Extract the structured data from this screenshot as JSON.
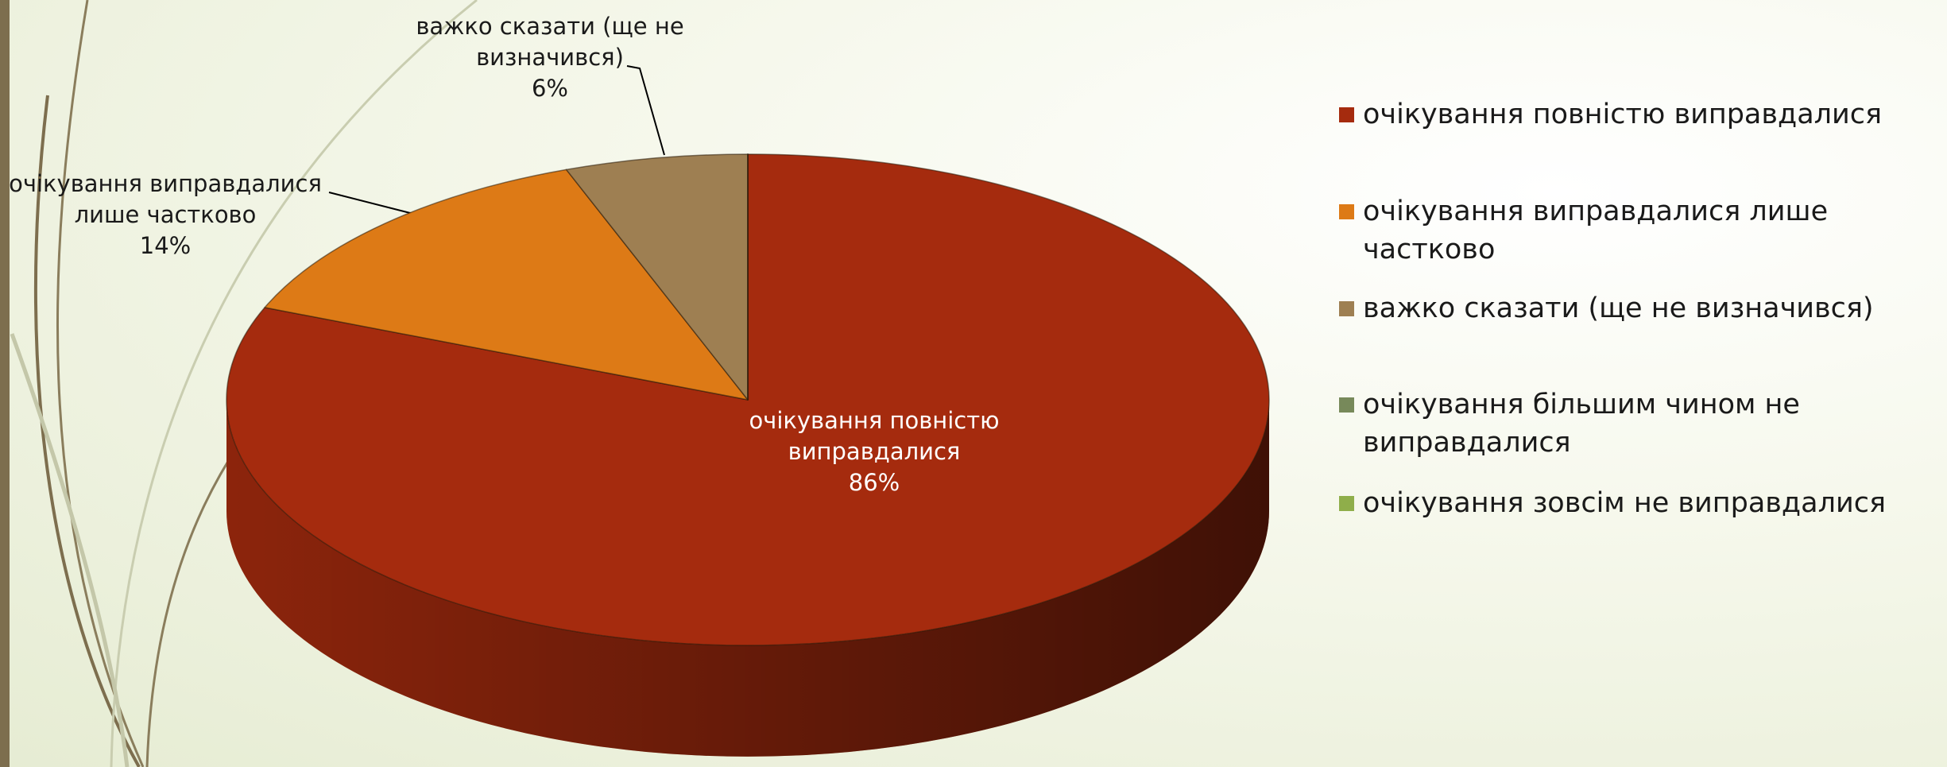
{
  "chart_data": {
    "type": "pie3d",
    "categories": [
      "очікування повністю виправдалися",
      "очікування виправдалися лише частково",
      "важко сказати (ще не визначився)",
      "очікування більшим чином не виправдалися",
      "очікування зовсім не виправдалися"
    ],
    "values": [
      86,
      14,
      6,
      0,
      0
    ],
    "value_labels": [
      "86%",
      "14%",
      "6%",
      null,
      null
    ],
    "colors": [
      "#a52b0e",
      "#dd7a16",
      "#9e7f52",
      "#77895a",
      "#8fae4a"
    ],
    "legend": "right"
  }
}
